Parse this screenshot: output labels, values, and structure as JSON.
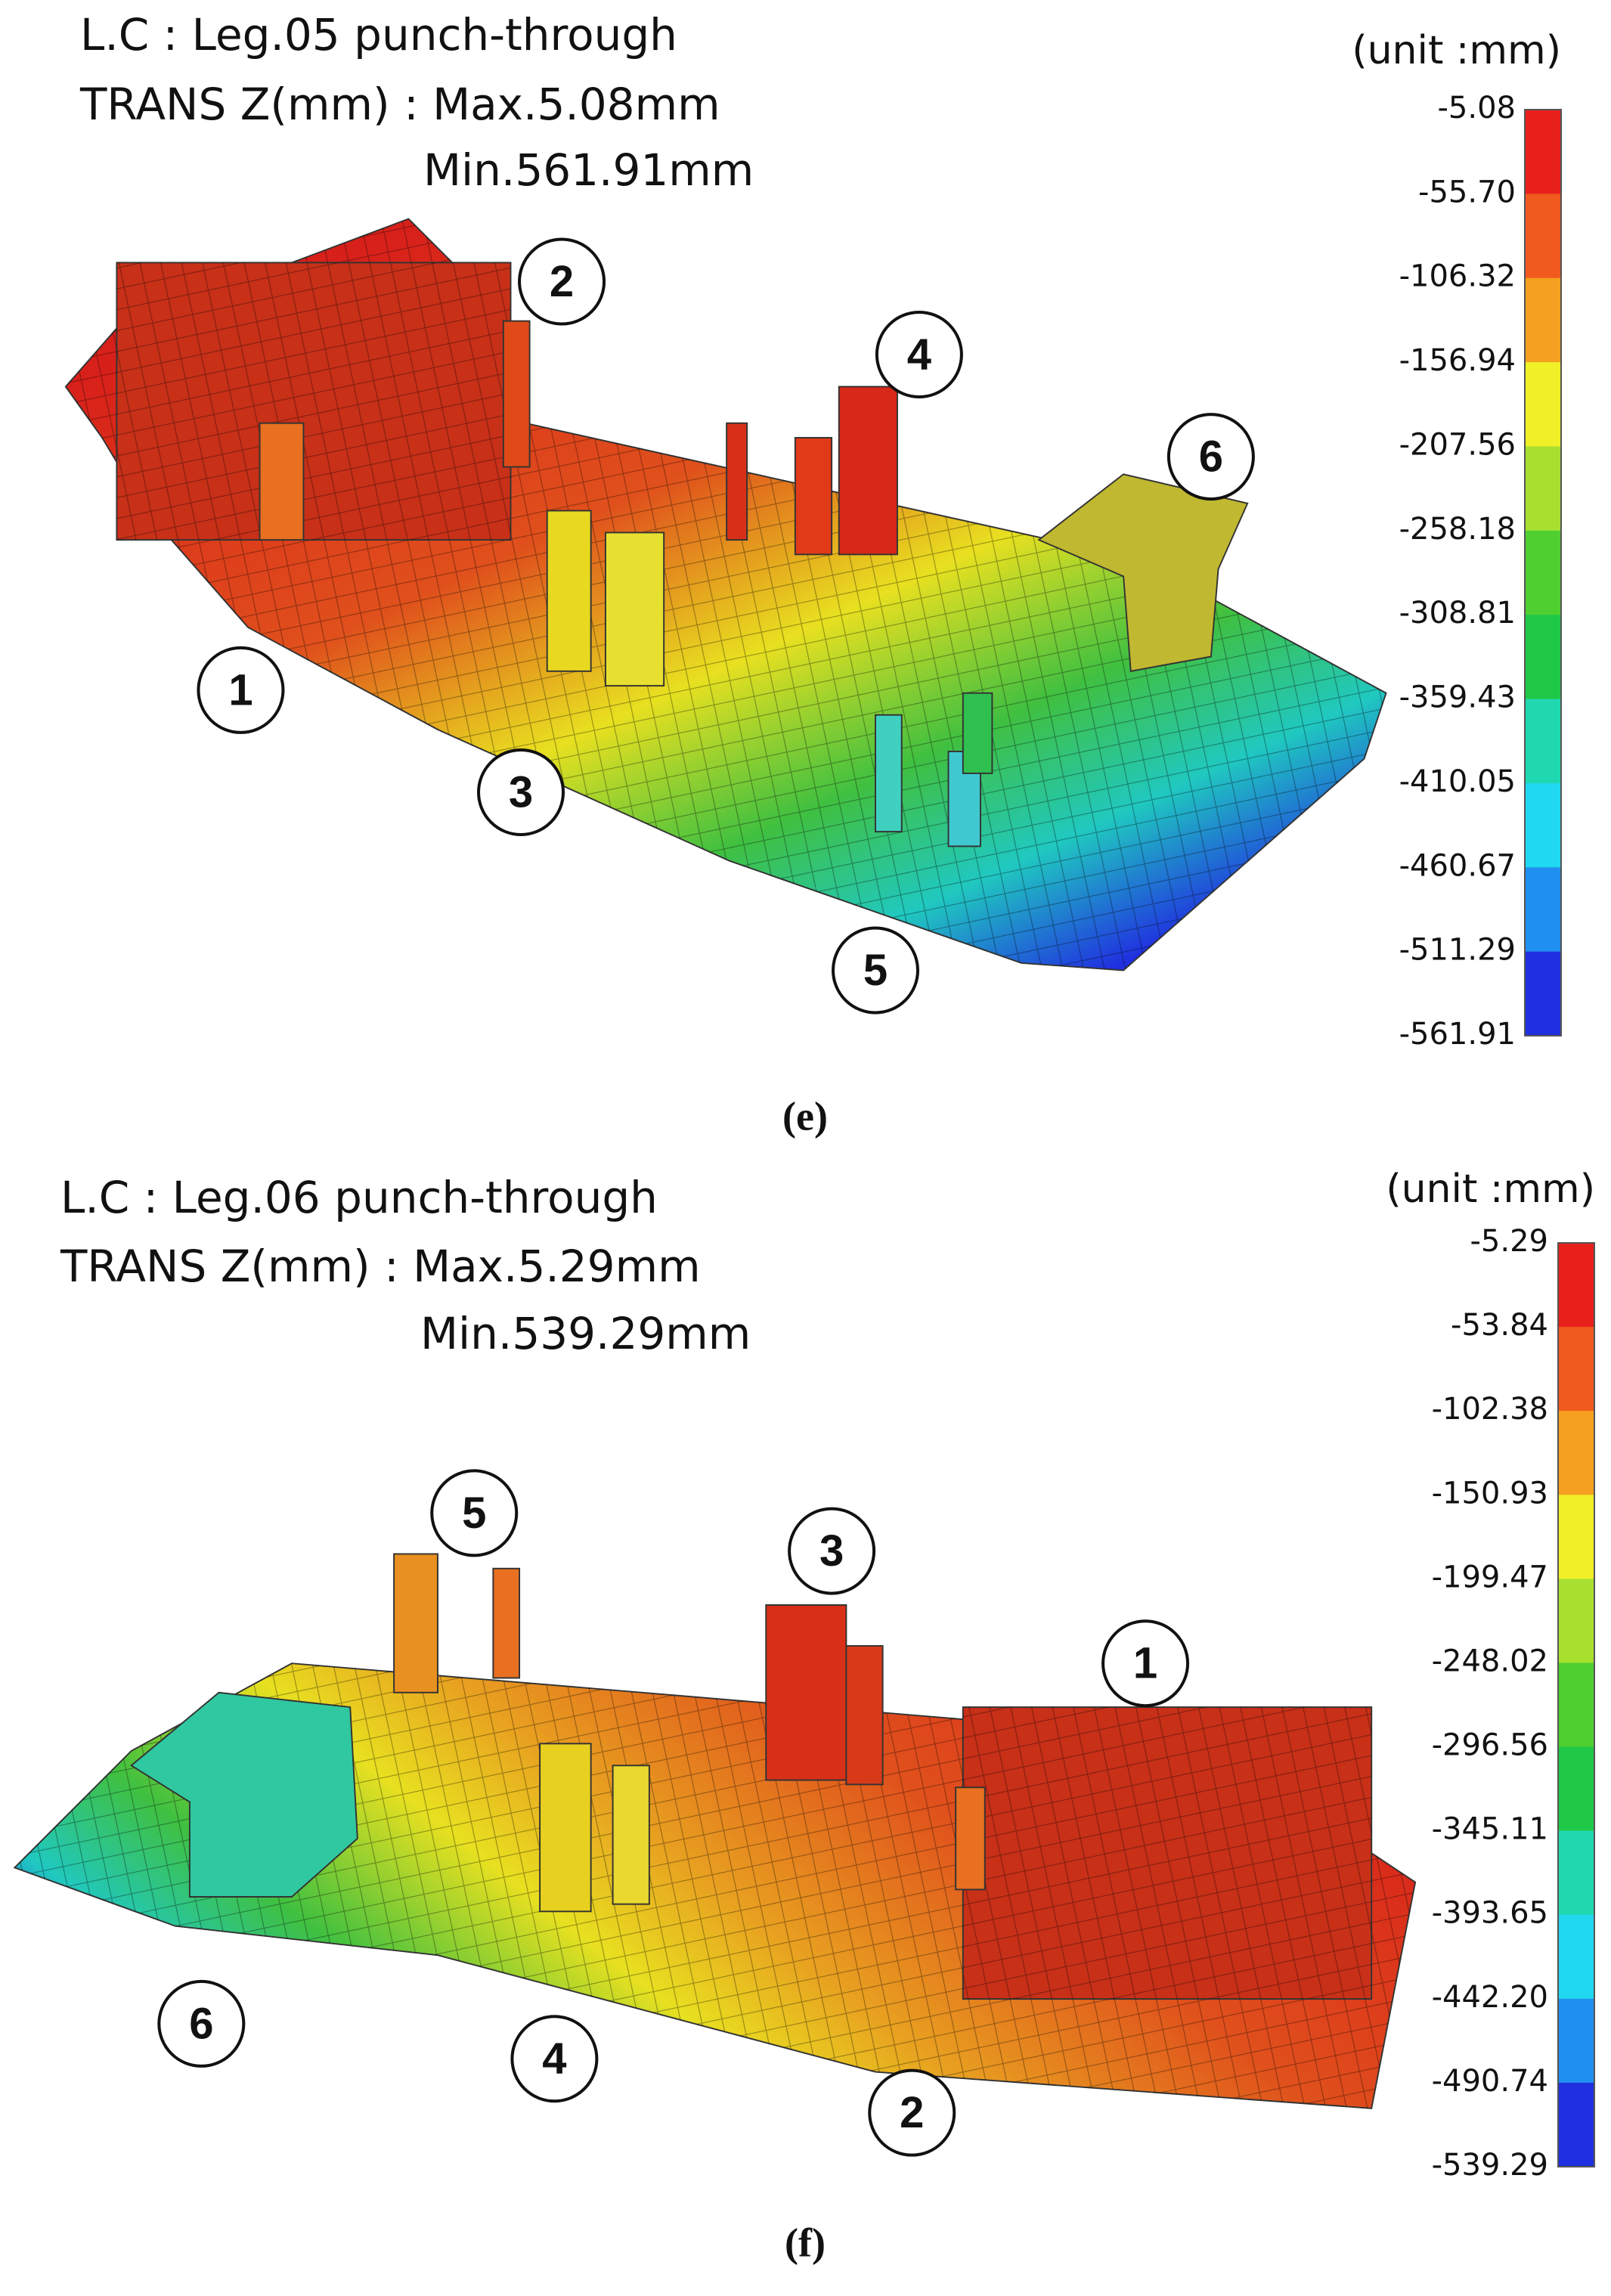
{
  "panels": [
    {
      "title": "L.C : Leg.05 punch-through",
      "trans": "TRANS Z(mm) : Max.5.08mm",
      "min": "Min.561.91mm",
      "unit": "(unit :mm)",
      "legend_labels": [
        "-5.08",
        "-55.70",
        "-106.32",
        "-156.94",
        "-207.56",
        "-258.18",
        "-308.81",
        "-359.43",
        "-410.05",
        "-460.67",
        "-511.29",
        "-561.91"
      ],
      "leg_labels": [
        "1",
        "2",
        "3",
        "4",
        "5",
        "6"
      ],
      "caption": "(e)"
    },
    {
      "title": "L.C : Leg.06 punch-through",
      "trans": "TRANS Z(mm) : Max.5.29mm",
      "min": "Min.539.29mm",
      "unit": "(unit :mm)",
      "legend_labels": [
        "-5.29",
        "-53.84",
        "-102.38",
        "-150.93",
        "-199.47",
        "-248.02",
        "-296.56",
        "-345.11",
        "-393.65",
        "-442.20",
        "-490.74",
        "-539.29"
      ],
      "leg_labels": [
        "1",
        "2",
        "3",
        "4",
        "5",
        "6"
      ],
      "caption": "(f)"
    }
  ]
}
